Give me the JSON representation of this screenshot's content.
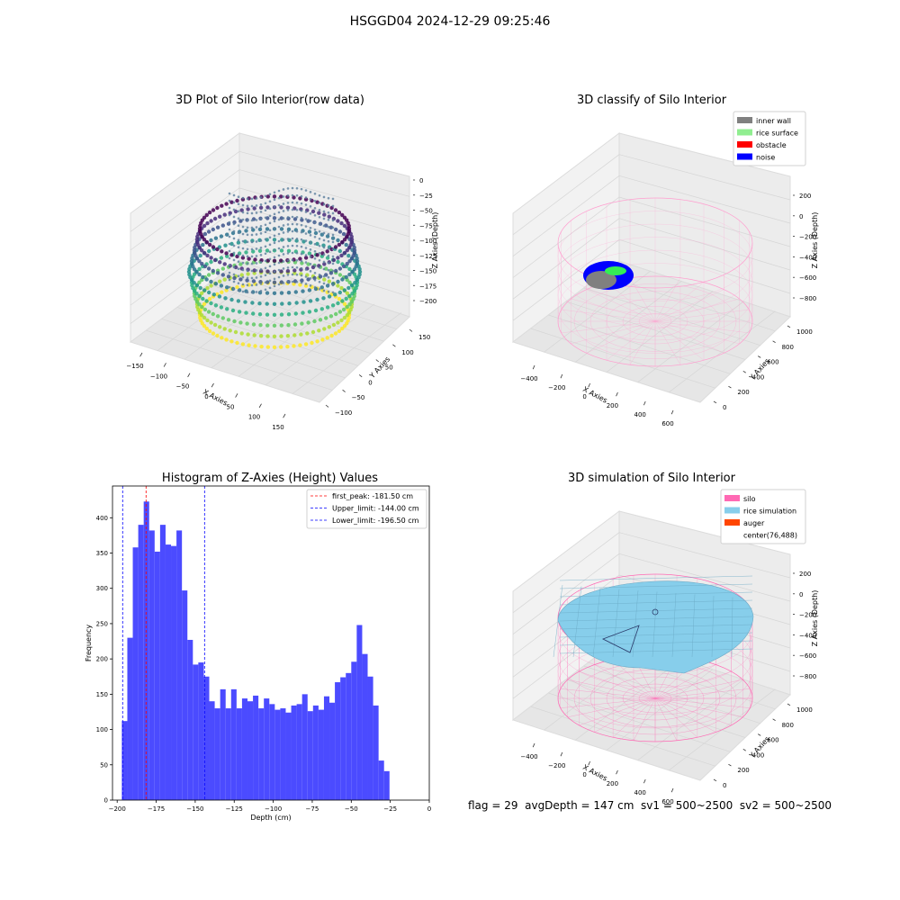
{
  "figure": {
    "suptitle": "HSGGD04 2024-12-29 09:25:46",
    "footer": "flag = 29  avgDepth = 147 cm  sv1 = 500~2500  sv2 = 500~2500"
  },
  "panels": {
    "raw": {
      "title": "3D Plot of Silo Interior(row data)",
      "xlabel": "X Axies",
      "ylabel": "Y Axies",
      "zlabel": "Z Axies (Depth)",
      "xticks": [
        "−150",
        "−100",
        "−50",
        "0",
        "50",
        "100",
        "150"
      ],
      "yticks": [
        "−100",
        "−50",
        "0",
        "50",
        "100",
        "150"
      ],
      "zticks": [
        "0",
        "−25",
        "−50",
        "−75",
        "−100",
        "−125",
        "−150",
        "−175",
        "−200"
      ]
    },
    "classify": {
      "title": "3D classify of Silo Interior",
      "xlabel": "X Axies",
      "ylabel": "Y Axies",
      "zlabel": "Z Axies (Depth)",
      "xticks": [
        "−400",
        "−200",
        "0",
        "200",
        "400",
        "600"
      ],
      "yticks": [
        "0",
        "200",
        "400",
        "600",
        "800",
        "1000"
      ],
      "zticks": [
        "200",
        "0",
        "−200",
        "−400",
        "−600",
        "−800"
      ],
      "legend": [
        {
          "label": "inner wall",
          "color": "#808080"
        },
        {
          "label": "rice surface",
          "color": "#90ee90"
        },
        {
          "label": "obstacle",
          "color": "#ff0000"
        },
        {
          "label": "noise",
          "color": "#0000ff"
        }
      ]
    },
    "simulation": {
      "title": "3D simulation of Silo Interior",
      "xlabel": "X Axies",
      "ylabel": "Y Axies",
      "zlabel": "Z Axies (Depth)",
      "xticks": [
        "−400",
        "−200",
        "0",
        "200",
        "400",
        "600"
      ],
      "yticks": [
        "0",
        "200",
        "400",
        "600",
        "800",
        "1000"
      ],
      "zticks": [
        "200",
        "0",
        "−200",
        "−400",
        "−600",
        "−800"
      ],
      "legend": [
        {
          "label": "silo",
          "color": "#ff69b4"
        },
        {
          "label": "rice simulation",
          "color": "#87ceeb"
        },
        {
          "label": "auger",
          "color": "#ff4500"
        },
        {
          "label": "center(76,488)",
          "color": ""
        }
      ]
    }
  },
  "chart_data": [
    {
      "type": "bar",
      "title": "Histogram of Z-Axies (Height) Values",
      "xlabel": "Depth (cm)",
      "ylabel": "Frequency",
      "xlim": [
        -203,
        0
      ],
      "ylim": [
        0,
        445
      ],
      "xticks": [
        -200,
        -175,
        -150,
        -125,
        -100,
        -75,
        -50,
        -25,
        0
      ],
      "yticks": [
        0,
        50,
        100,
        150,
        200,
        250,
        300,
        350,
        400
      ],
      "bin_start": -197,
      "bin_width": 3.5,
      "values": [
        112,
        230,
        358,
        390,
        423,
        382,
        352,
        390,
        362,
        360,
        382,
        297,
        227,
        192,
        195,
        175,
        140,
        130,
        157,
        130,
        157,
        130,
        144,
        140,
        148,
        130,
        144,
        136,
        128,
        130,
        124,
        134,
        136,
        150,
        126,
        134,
        128,
        147,
        138,
        167,
        174,
        180,
        196,
        248,
        207,
        175,
        134,
        56,
        41
      ],
      "vlines": [
        {
          "label": "first_peak: -181.50 cm",
          "x": -181.5,
          "color": "#ff0000"
        },
        {
          "label": "Upper_limit: -144.00 cm",
          "x": -144.0,
          "color": "#0000ff"
        },
        {
          "label": "Lower_limit: -196.50 cm",
          "x": -196.5,
          "color": "#0000ff"
        }
      ],
      "bar_color": "#4b4bff",
      "legend_position": "upper right"
    }
  ]
}
